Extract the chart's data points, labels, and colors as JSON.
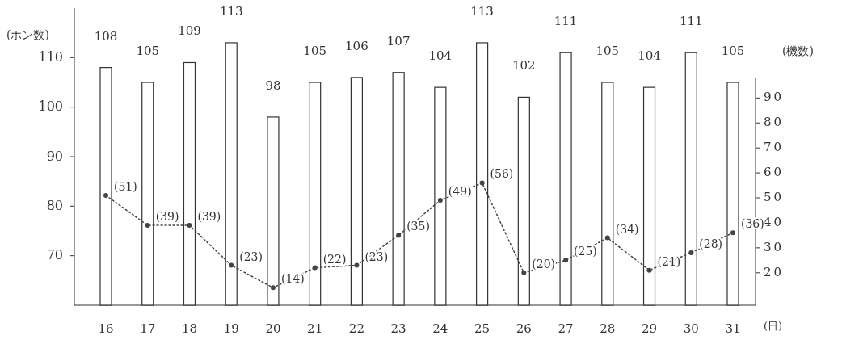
{
  "chart_data": {
    "type": "bar",
    "categories": [
      "16",
      "17",
      "18",
      "19",
      "20",
      "21",
      "22",
      "23",
      "24",
      "25",
      "26",
      "27",
      "28",
      "29",
      "30",
      "31"
    ],
    "ylabel": "(ホン数)",
    "y2label": "(機数)",
    "xlabel": "(日)",
    "ylim": [
      60,
      120
    ],
    "yticks": [
      70,
      80,
      90,
      100,
      110
    ],
    "y2lim": [
      7,
      126
    ],
    "y2ticks": [
      20,
      30,
      40,
      50,
      60,
      70,
      80,
      90
    ],
    "grid": false,
    "series": [
      {
        "color": "#ffffff",
        "values": [
          108,
          105,
          109,
          113,
          98,
          105,
          106,
          107,
          104,
          113,
          102,
          111,
          105,
          104,
          111,
          105
        ],
        "value_labels": [
          "108",
          "105",
          "109",
          "113",
          "98",
          "105",
          "106",
          "107",
          "104",
          "113",
          "102",
          "111",
          "105",
          "104",
          "111",
          "105"
        ]
      },
      {
        "type": "line",
        "axis": "y2",
        "color": "#444444",
        "line_style": "dotted",
        "marker": "circle",
        "values": [
          51,
          39,
          39,
          23,
          14,
          22,
          23,
          35,
          49,
          56,
          20,
          25,
          34,
          21,
          28,
          36
        ],
        "value_labels": [
          "(51)",
          "(39)",
          "(39)",
          "(23)",
          "(14)",
          "(22)",
          "(23)",
          "(35)",
          "(49)",
          "(56)",
          "(20)",
          "(25)",
          "(34)",
          "(21)",
          "(28)",
          "(36)"
        ]
      }
    ]
  }
}
